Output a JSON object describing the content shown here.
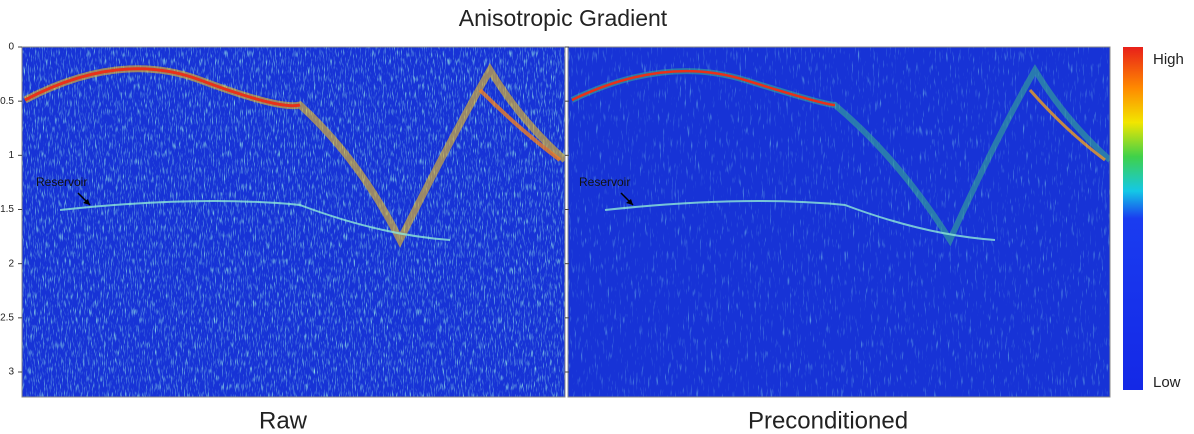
{
  "title": "Anisotropic Gradient",
  "axis": {
    "ticks": [
      0,
      0.5,
      1,
      1.5,
      2,
      2.5,
      3
    ]
  },
  "panels": [
    {
      "label": "Raw",
      "annotation": "Reservoir"
    },
    {
      "label": "Preconditioned",
      "annotation": "Reservoir"
    }
  ],
  "colorbar": {
    "high": "High",
    "low": "Low"
  }
}
